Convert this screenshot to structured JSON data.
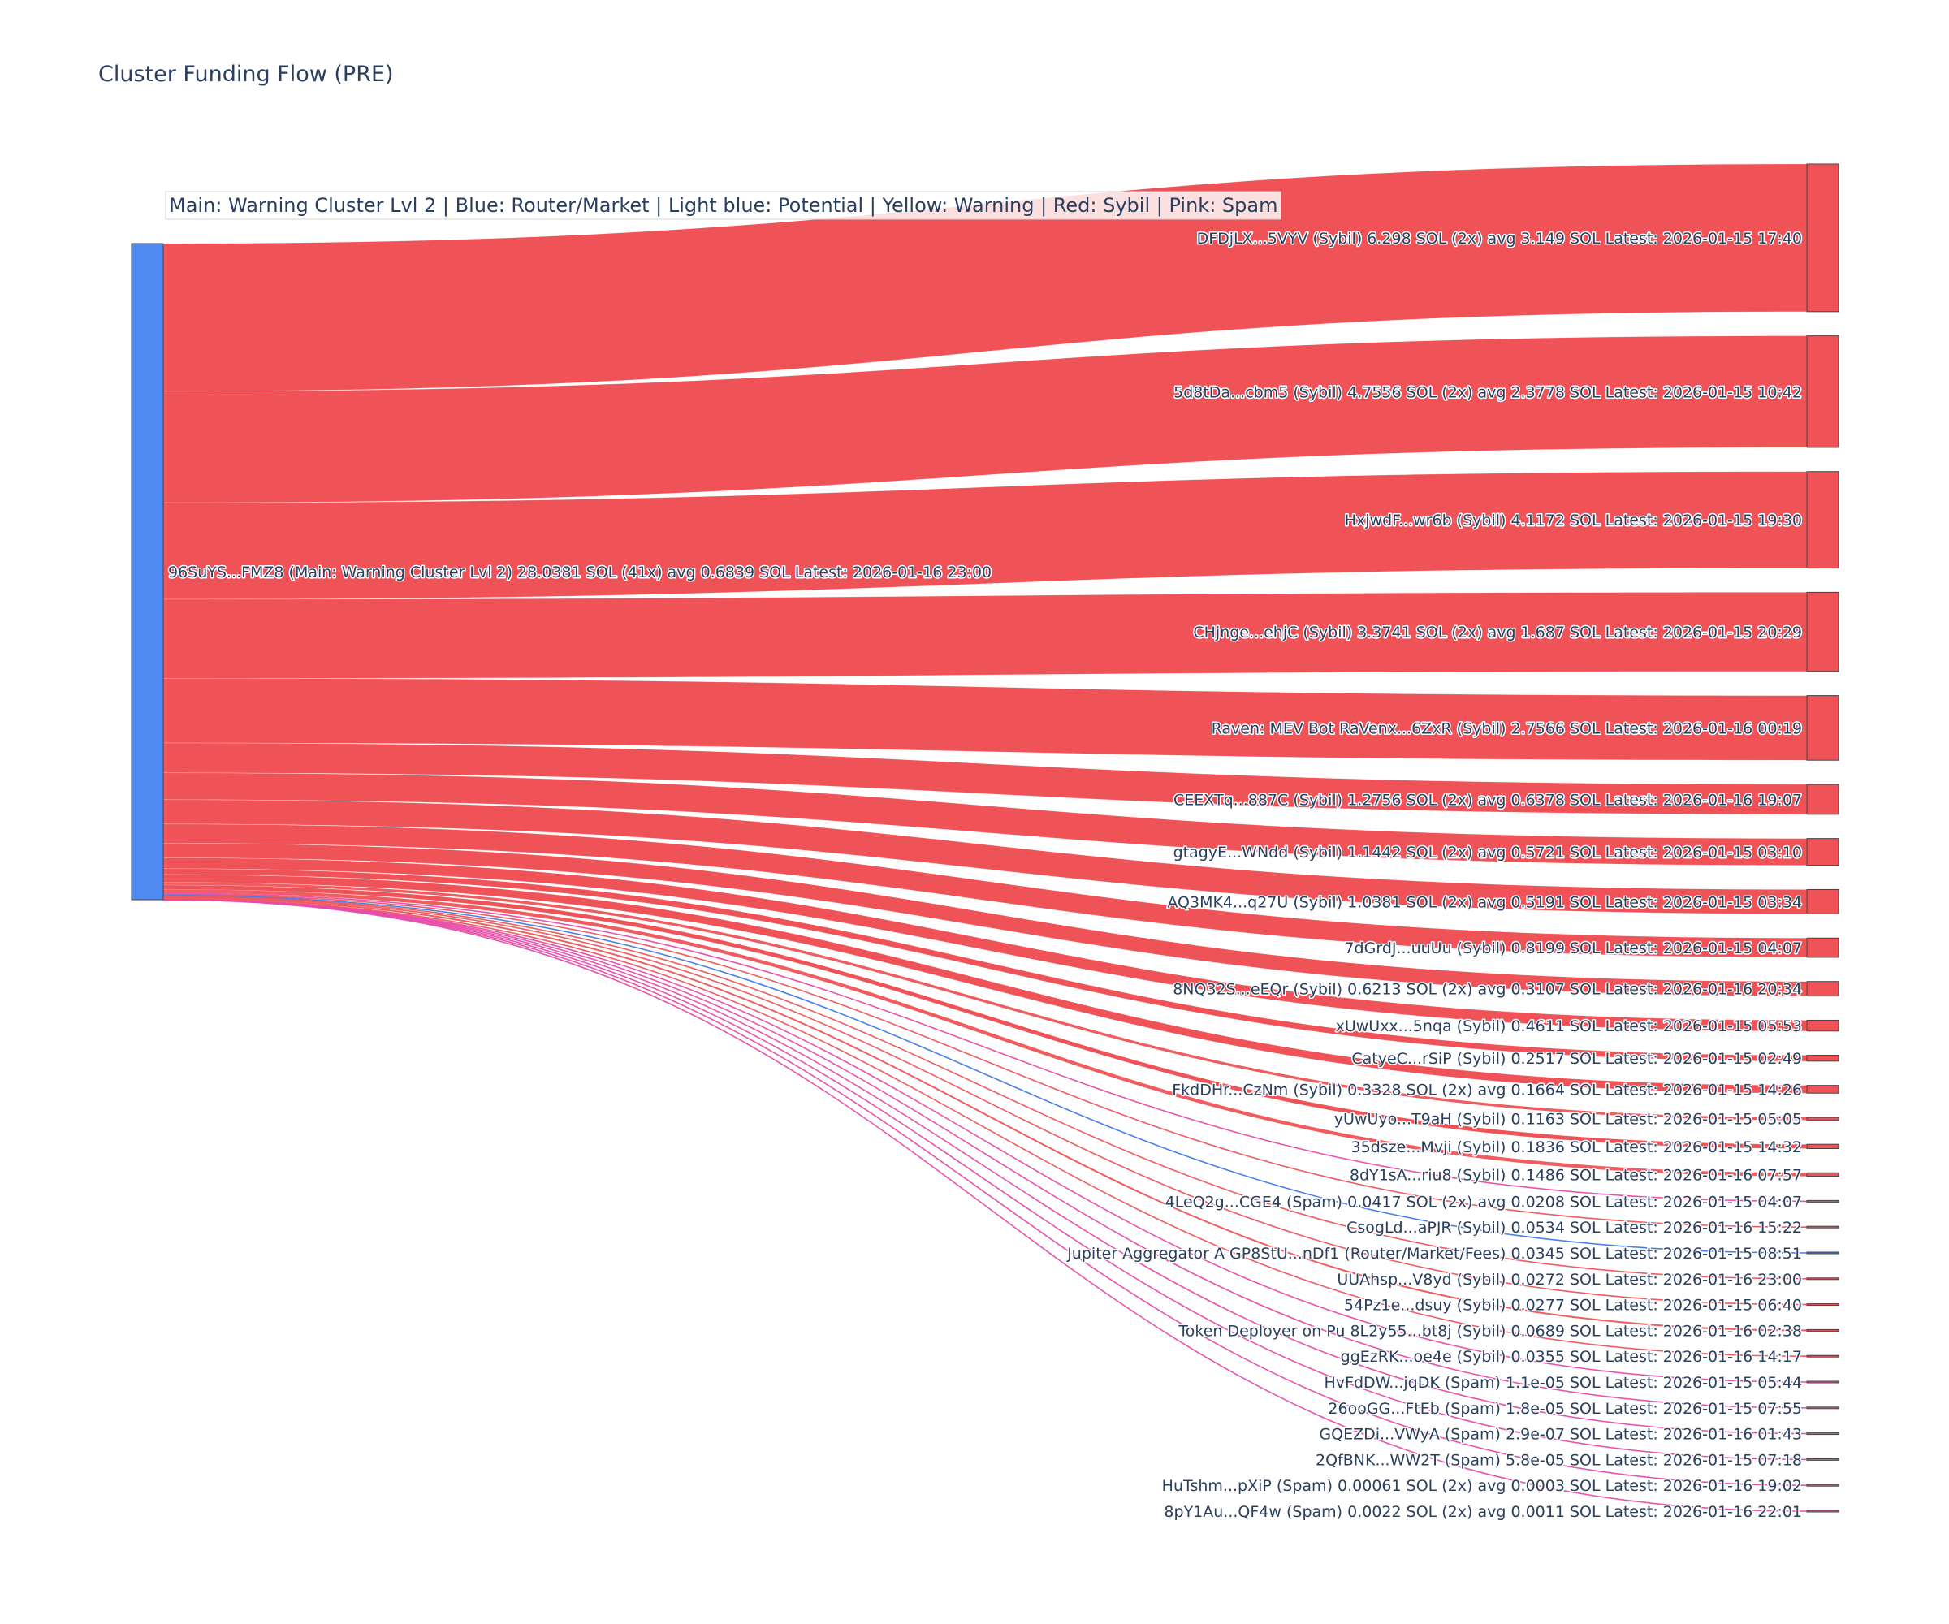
{
  "chart_data": {
    "type": "sankey",
    "title": "Cluster Funding Flow (PRE)",
    "legend": "Main: Warning Cluster Lvl 2  |  Blue: Router/Market | Light blue: Potential | Yellow: Warning | Red: Sybil | Pink: Spam",
    "colors": {
      "main": "#4f8bf2",
      "sybil": "#ef5357",
      "spam": "#e84ba6",
      "router": "#3f78e8"
    },
    "source": {
      "label": "96SuYS...FMZ8 (Main: Warning Cluster Lvl 2) 28.0381 SOL (41x) avg 0.6839 SOL Latest: 2026-01-16 23:00",
      "category": "main"
    },
    "targets": [
      {
        "label": "DFDjLX...5VYV (Sybil) 6.298 SOL (2x) avg 3.149 SOL Latest: 2026-01-15 17:40",
        "value": 6.298,
        "category": "sybil"
      },
      {
        "label": "5d8tDa...cbm5 (Sybil) 4.7556 SOL (2x) avg 2.3778 SOL Latest: 2026-01-15 10:42",
        "value": 4.7556,
        "category": "sybil"
      },
      {
        "label": "HxjwdF...wr6b (Sybil) 4.1172 SOL Latest: 2026-01-15 19:30",
        "value": 4.1172,
        "category": "sybil"
      },
      {
        "label": "CHjnge...ehjC (Sybil) 3.3741 SOL (2x) avg 1.687 SOL Latest: 2026-01-15 20:29",
        "value": 3.3741,
        "category": "sybil"
      },
      {
        "label": "Raven: MEV Bot RaVenx...6ZxR (Sybil) 2.7566 SOL Latest: 2026-01-16 00:19",
        "value": 2.7566,
        "category": "sybil"
      },
      {
        "label": "CEEXTq...887C (Sybil) 1.2756 SOL (2x) avg 0.6378 SOL Latest: 2026-01-16 19:07",
        "value": 1.2756,
        "category": "sybil"
      },
      {
        "label": "gtagyE...WNdd (Sybil) 1.1442 SOL (2x) avg 0.5721 SOL Latest: 2026-01-15 03:10",
        "value": 1.1442,
        "category": "sybil"
      },
      {
        "label": "AQ3MK4...q27U (Sybil) 1.0381 SOL (2x) avg 0.5191 SOL Latest: 2026-01-15 03:34",
        "value": 1.0381,
        "category": "sybil"
      },
      {
        "label": "7dGrdJ...uuUu (Sybil) 0.8199 SOL Latest: 2026-01-15 04:07",
        "value": 0.8199,
        "category": "sybil"
      },
      {
        "label": "8NQ32S...eEQr (Sybil) 0.6213 SOL (2x) avg 0.3107 SOL Latest: 2026-01-16 20:34",
        "value": 0.6213,
        "category": "sybil"
      },
      {
        "label": "xUwUxx...5nqa (Sybil) 0.4611 SOL Latest: 2026-01-15 05:53",
        "value": 0.4611,
        "category": "sybil"
      },
      {
        "label": "CatyeC...rSiP (Sybil) 0.2517 SOL Latest: 2026-01-15 02:49",
        "value": 0.2517,
        "category": "sybil"
      },
      {
        "label": "FkdDHr...CzNm (Sybil) 0.3328 SOL (2x) avg 0.1664 SOL Latest: 2026-01-15 14:26",
        "value": 0.3328,
        "category": "sybil"
      },
      {
        "label": "yUwUyo...T9aH (Sybil) 0.1163 SOL Latest: 2026-01-15 05:05",
        "value": 0.1163,
        "category": "sybil"
      },
      {
        "label": "35dsze...Mvji (Sybil) 0.1836 SOL Latest: 2026-01-15 14:32",
        "value": 0.1836,
        "category": "sybil"
      },
      {
        "label": "8dY1sA...riu8 (Sybil) 0.1486 SOL Latest: 2026-01-16 07:57",
        "value": 0.1486,
        "category": "sybil"
      },
      {
        "label": "4LeQ2g...CGE4 (Spam) 0.0417 SOL (2x) avg 0.0208 SOL Latest: 2026-01-15 04:07",
        "value": 0.0417,
        "category": "spam"
      },
      {
        "label": "CsogLd...aPJR (Sybil) 0.0534 SOL Latest: 2026-01-16 15:22",
        "value": 0.0534,
        "category": "sybil"
      },
      {
        "label": "Jupiter Aggregator A GP8StU...nDf1 (Router/Market/Fees) 0.0345 SOL Latest: 2026-01-15 08:51",
        "value": 0.0345,
        "category": "router"
      },
      {
        "label": "UUAhsp...V8yd (Sybil) 0.0272 SOL Latest: 2026-01-16 23:00",
        "value": 0.0272,
        "category": "sybil"
      },
      {
        "label": "54Pz1e...dsuy (Sybil) 0.0277 SOL Latest: 2026-01-15 06:40",
        "value": 0.0277,
        "category": "sybil"
      },
      {
        "label": "Token Deployer on Pu 8L2y55...bt8j (Sybil) 0.0689 SOL Latest: 2026-01-16 02:38",
        "value": 0.0689,
        "category": "sybil"
      },
      {
        "label": "ggEzRK...oe4e (Sybil) 0.0355 SOL Latest: 2026-01-16 14:17",
        "value": 0.0355,
        "category": "sybil"
      },
      {
        "label": "HvFdDW...jqDK (Spam) 1.1e-05 SOL Latest: 2026-01-15 05:44",
        "value": 1.1e-05,
        "category": "spam"
      },
      {
        "label": "26ooGG...FtEb (Spam) 1.8e-05 SOL Latest: 2026-01-15 07:55",
        "value": 1.8e-05,
        "category": "spam"
      },
      {
        "label": "GQEZDi...VWyA (Spam) 2.9e-07 SOL Latest: 2026-01-16 01:43",
        "value": 2.9e-07,
        "category": "spam"
      },
      {
        "label": "2QfBNK...WW2T (Spam) 5.8e-05 SOL Latest: 2026-01-15 07:18",
        "value": 5.8e-05,
        "category": "spam"
      },
      {
        "label": "HuTshm...pXiP (Spam) 0.00061 SOL (2x) avg 0.0003 SOL Latest: 2026-01-16 19:02",
        "value": 0.00061,
        "category": "spam"
      },
      {
        "label": "8pY1Au...QF4w (Spam) 0.0022 SOL (2x) avg 0.0011 SOL Latest: 2026-01-16 22:01",
        "value": 0.0022,
        "category": "spam"
      }
    ]
  }
}
